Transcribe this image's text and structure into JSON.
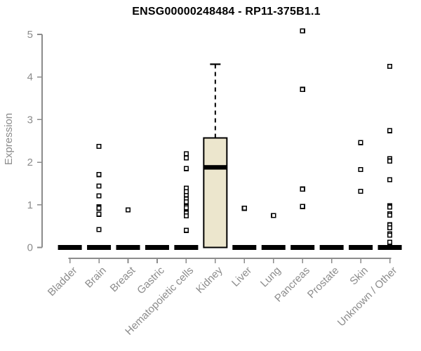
{
  "chart_data": {
    "type": "boxplot",
    "title": "ENSG00000248484 - RP11-375B1.1",
    "ylabel": "Expression",
    "xlabel": "",
    "ylim": [
      0,
      5
    ],
    "yticks": [
      0,
      1,
      2,
      3,
      4,
      5
    ],
    "grid": false,
    "legend": "none",
    "categories": [
      "Bladder",
      "Brain",
      "Breast",
      "Gastric",
      "Hematopoietic cells",
      "Kidney",
      "Liver",
      "Lung",
      "Pancreas",
      "Prostate",
      "Skin",
      "Unknown / Other"
    ],
    "boxes": [
      {
        "category": "Bladder",
        "q1": 0,
        "median": 0,
        "q3": 0,
        "whisker_low": 0,
        "whisker_high": 0,
        "outliers": []
      },
      {
        "category": "Brain",
        "q1": 0,
        "median": 0,
        "q3": 0,
        "whisker_low": 0,
        "whisker_high": 0,
        "outliers": [
          2.37,
          1.71,
          1.44,
          1.21,
          0.95,
          0.92,
          0.78,
          0.42
        ]
      },
      {
        "category": "Breast",
        "q1": 0,
        "median": 0,
        "q3": 0,
        "whisker_low": 0,
        "whisker_high": 0,
        "outliers": [
          0.88
        ]
      },
      {
        "category": "Gastric",
        "q1": 0,
        "median": 0,
        "q3": 0,
        "whisker_low": 0,
        "whisker_high": 0,
        "outliers": []
      },
      {
        "category": "Hematopoietic cells",
        "q1": 0,
        "median": 0,
        "q3": 0,
        "whisker_low": 0,
        "whisker_high": 0,
        "outliers": [
          2.2,
          2.1,
          1.85,
          1.39,
          1.31,
          1.22,
          1.14,
          1.07,
          0.96,
          0.93,
          0.81,
          0.74,
          0.4
        ]
      },
      {
        "category": "Kidney",
        "q1": 0,
        "median": 1.88,
        "q3": 2.57,
        "whisker_low": 0,
        "whisker_high": 4.3,
        "outliers": []
      },
      {
        "category": "Liver",
        "q1": 0,
        "median": 0,
        "q3": 0,
        "whisker_low": 0,
        "whisker_high": 0,
        "outliers": [
          0.92
        ]
      },
      {
        "category": "Lung",
        "q1": 0,
        "median": 0,
        "q3": 0,
        "whisker_low": 0,
        "whisker_high": 0,
        "outliers": [
          0.75
        ]
      },
      {
        "category": "Pancreas",
        "q1": 0,
        "median": 0,
        "q3": 0,
        "whisker_low": 0,
        "whisker_high": 0,
        "outliers": [
          5.08,
          3.71,
          1.37,
          0.96
        ]
      },
      {
        "category": "Prostate",
        "q1": 0,
        "median": 0,
        "q3": 0,
        "whisker_low": 0,
        "whisker_high": 0,
        "outliers": []
      },
      {
        "category": "Skin",
        "q1": 0,
        "median": 0,
        "q3": 0,
        "whisker_low": 0,
        "whisker_high": 0,
        "outliers": [
          2.46,
          1.83,
          1.32
        ]
      },
      {
        "category": "Unknown / Other",
        "q1": 0,
        "median": 0,
        "q3": 0,
        "whisker_low": 0,
        "whisker_high": 0,
        "outliers": [
          4.25,
          2.74,
          2.08,
          2.03,
          1.59,
          0.98,
          0.95,
          0.79,
          0.76,
          0.53,
          0.46,
          0.32,
          0.29,
          0.12
        ]
      }
    ],
    "colors": {
      "box_fill": "#ece6cd",
      "box_stroke": "#000000",
      "median": "#000000",
      "whisker": "#000000",
      "outlier_stroke": "#000000",
      "outlier_fill": "#ffffff",
      "axis": "#8c8c8c",
      "tick_label": "#8c8c8c",
      "title": "#000000",
      "background": "#ffffff"
    }
  }
}
